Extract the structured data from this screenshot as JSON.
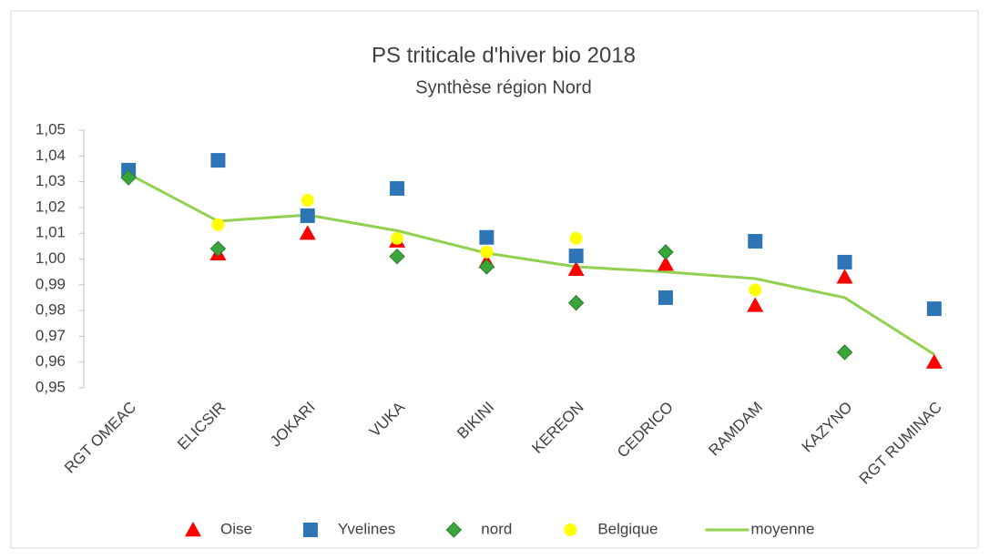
{
  "chart_data": {
    "type": "line",
    "title": "PS triticale d'hiver bio 2018",
    "subtitle": "Synthèse région Nord",
    "categories": [
      "RGT OMEAC",
      "ELICSIR",
      "JOKARI",
      "VUKA",
      "BIKINI",
      "KEREON",
      "CEDRICO",
      "RAMDAM",
      "KAZYNO",
      "RGT RUMINAC"
    ],
    "ylim": [
      0.95,
      1.05
    ],
    "yticks": [
      {
        "value": 0.95,
        "label": "0,95"
      },
      {
        "value": 0.96,
        "label": "0,96"
      },
      {
        "value": 0.97,
        "label": "0,97"
      },
      {
        "value": 0.98,
        "label": "0,98"
      },
      {
        "value": 0.99,
        "label": "0,99"
      },
      {
        "value": 1.0,
        "label": "1,00"
      },
      {
        "value": 1.01,
        "label": "1,01"
      },
      {
        "value": 1.02,
        "label": "1,02"
      },
      {
        "value": 1.03,
        "label": "1,03"
      },
      {
        "value": 1.04,
        "label": "1,04"
      },
      {
        "value": 1.05,
        "label": "1,05"
      }
    ],
    "legend": "bottom",
    "series": [
      {
        "name": "Oise",
        "type": "scatter",
        "marker": "triangle",
        "color": "#ff0000",
        "values": [
          null,
          1.002,
          1.01,
          1.007,
          0.999,
          0.996,
          0.998,
          0.982,
          0.993,
          0.96
        ]
      },
      {
        "name": "Yvelines",
        "type": "scatter",
        "marker": "square",
        "color": "#2e75b6",
        "values": [
          1.0345,
          1.0383,
          1.0168,
          1.0274,
          1.0084,
          1.0012,
          0.985,
          1.0069,
          0.9988,
          0.9807
        ]
      },
      {
        "name": "nord",
        "type": "scatter",
        "marker": "diamond",
        "color": "#3aa53a",
        "values": [
          1.0316,
          1.004,
          null,
          1.001,
          0.997,
          0.983,
          1.0027,
          null,
          0.9638,
          null
        ]
      },
      {
        "name": "Belgique",
        "type": "scatter",
        "marker": "circle",
        "color": "#ffff00",
        "values": [
          null,
          1.0133,
          1.0228,
          1.008,
          1.0027,
          1.008,
          null,
          0.988,
          null,
          null
        ]
      },
      {
        "name": "moyenne",
        "type": "line",
        "color": "#92d050",
        "values": [
          1.033,
          1.0147,
          1.0171,
          1.011,
          1.0023,
          0.997,
          0.995,
          0.9924,
          0.985,
          0.963
        ]
      }
    ]
  }
}
